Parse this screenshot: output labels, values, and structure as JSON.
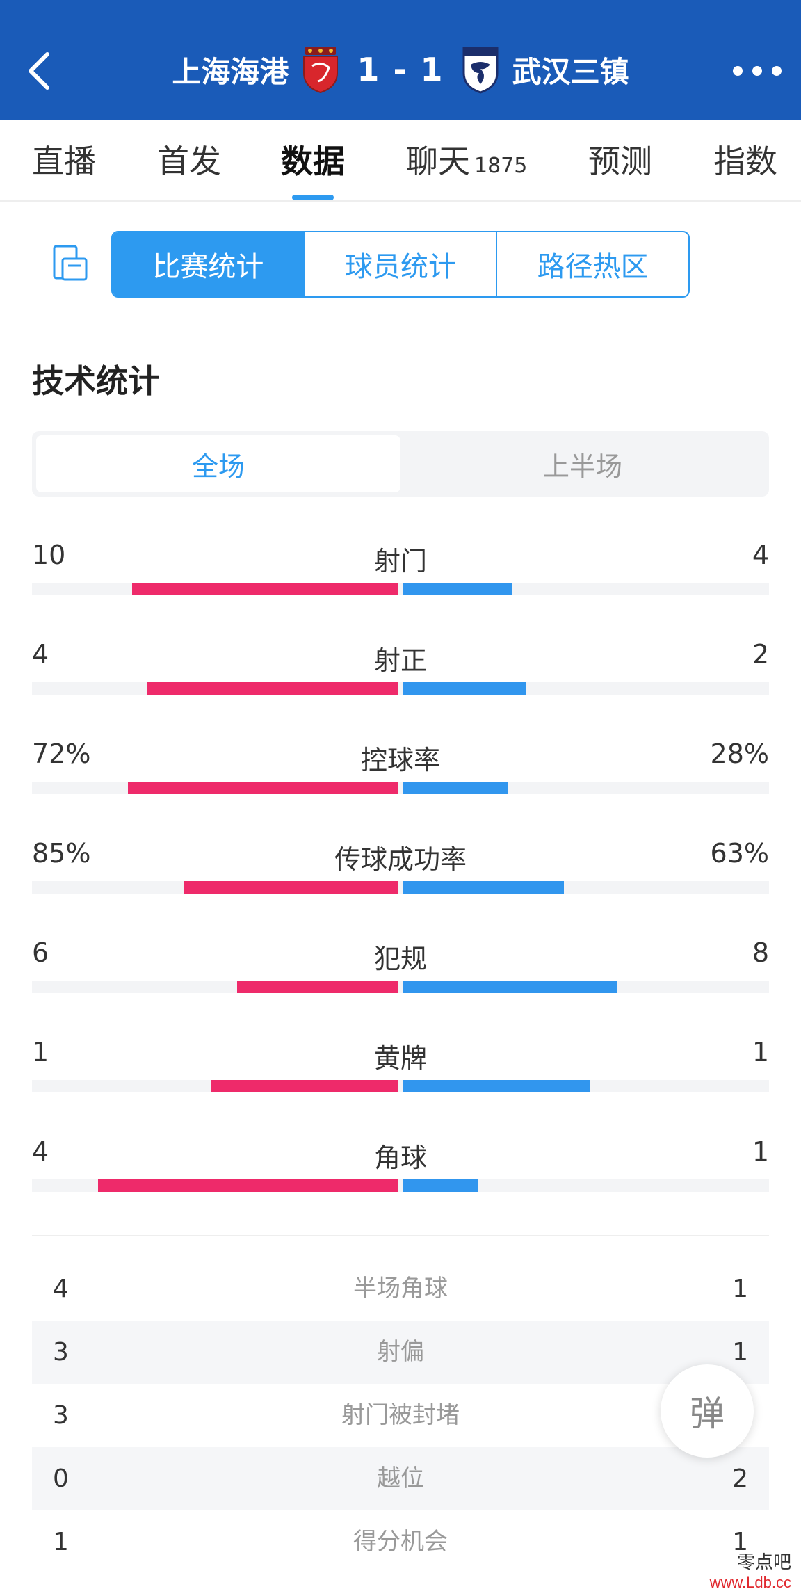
{
  "header": {
    "home_team": "上海海港",
    "away_team": "武汉三镇",
    "score": "1 - 1",
    "bg_color": "#1a5bb8"
  },
  "tabs": [
    {
      "label": "直播"
    },
    {
      "label": "首发"
    },
    {
      "label": "数据"
    },
    {
      "label": "聊天",
      "count": "1875"
    },
    {
      "label": "预测"
    },
    {
      "label": "指数"
    }
  ],
  "active_tab": "数据",
  "segments": [
    "比赛统计",
    "球员统计",
    "路径热区"
  ],
  "active_segment": "比赛统计",
  "section_title": "技术统计",
  "periods": [
    "全场",
    "上半场"
  ],
  "active_period": "全场",
  "colors": {
    "home": "#ee2a6a",
    "away": "#3196ee",
    "accent": "#2d9af0"
  },
  "stats": [
    {
      "name": "射门",
      "home": "10",
      "away": "4",
      "home_ratio": 0.71,
      "away_ratio": 0.29
    },
    {
      "name": "射正",
      "home": "4",
      "away": "2",
      "home_ratio": 0.67,
      "away_ratio": 0.33
    },
    {
      "name": "控球率",
      "home": "72%",
      "away": "28%",
      "home_ratio": 0.72,
      "away_ratio": 0.28
    },
    {
      "name": "传球成功率",
      "home": "85%",
      "away": "63%",
      "home_ratio": 0.57,
      "away_ratio": 0.43
    },
    {
      "name": "犯规",
      "home": "6",
      "away": "8",
      "home_ratio": 0.43,
      "away_ratio": 0.57
    },
    {
      "name": "黄牌",
      "home": "1",
      "away": "1",
      "home_ratio": 0.5,
      "away_ratio": 0.5
    },
    {
      "name": "角球",
      "home": "4",
      "away": "1",
      "home_ratio": 0.8,
      "away_ratio": 0.2
    }
  ],
  "table": [
    {
      "name": "半场角球",
      "home": "4",
      "away": "1"
    },
    {
      "name": "射偏",
      "home": "3",
      "away": "1"
    },
    {
      "name": "射门被封堵",
      "home": "3",
      "away": ""
    },
    {
      "name": "越位",
      "home": "0",
      "away": "2"
    },
    {
      "name": "得分机会",
      "home": "1",
      "away": "1"
    }
  ],
  "float_button": "弹",
  "watermark": {
    "line1": "零点吧",
    "line2": "www.Ldb.cc"
  }
}
